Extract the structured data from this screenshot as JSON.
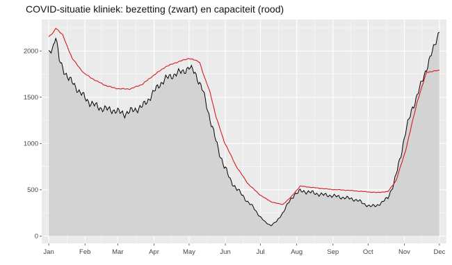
{
  "chart_data": {
    "type": "area",
    "title": "COVID-situatie kliniek: bezetting (zwart) en capaciteit (rood)",
    "xlabel": "",
    "ylabel": "",
    "x_ticks": [
      "Jan",
      "Feb",
      "Mar",
      "Apr",
      "May",
      "Jun",
      "Jul",
      "Aug",
      "Sep",
      "Oct",
      "Nov",
      "Dec"
    ],
    "y_ticks": [
      "0",
      "500",
      "1000",
      "1500",
      "2000"
    ],
    "ylim": [
      -80,
      2340
    ],
    "grid": true,
    "legend": "none",
    "colors": {
      "panel": "#ebebeb",
      "grid": "#ffffff",
      "area": "#d3d3d3",
      "bezetting": "#000000",
      "capaciteit": "#d7191c"
    },
    "series": [
      {
        "key": "bezetting",
        "points": [
          [
            0,
            1970
          ],
          [
            4,
            2060
          ],
          [
            6,
            2160
          ],
          [
            9,
            1900
          ],
          [
            13,
            1790
          ],
          [
            17,
            1700
          ],
          [
            21,
            1650
          ],
          [
            26,
            1560
          ],
          [
            30,
            1510
          ],
          [
            35,
            1440
          ],
          [
            40,
            1410
          ],
          [
            45,
            1380
          ],
          [
            50,
            1370
          ],
          [
            55,
            1360
          ],
          [
            60,
            1340
          ],
          [
            65,
            1320
          ],
          [
            70,
            1350
          ],
          [
            75,
            1370
          ],
          [
            80,
            1400
          ],
          [
            85,
            1470
          ],
          [
            90,
            1560
          ],
          [
            95,
            1640
          ],
          [
            100,
            1700
          ],
          [
            105,
            1730
          ],
          [
            110,
            1760
          ],
          [
            115,
            1780
          ],
          [
            120,
            1820
          ],
          [
            125,
            1770
          ],
          [
            128,
            1680
          ],
          [
            132,
            1560
          ],
          [
            136,
            1360
          ],
          [
            140,
            1170
          ],
          [
            145,
            930
          ],
          [
            150,
            760
          ],
          [
            155,
            610
          ],
          [
            160,
            520
          ],
          [
            165,
            450
          ],
          [
            170,
            370
          ],
          [
            175,
            310
          ],
          [
            180,
            220
          ],
          [
            185,
            150
          ],
          [
            190,
            115
          ],
          [
            195,
            160
          ],
          [
            200,
            250
          ],
          [
            205,
            360
          ],
          [
            210,
            450
          ],
          [
            215,
            485
          ],
          [
            220,
            480
          ],
          [
            225,
            470
          ],
          [
            230,
            455
          ],
          [
            235,
            445
          ],
          [
            240,
            440
          ],
          [
            245,
            430
          ],
          [
            250,
            420
          ],
          [
            255,
            410
          ],
          [
            260,
            400
          ],
          [
            265,
            380
          ],
          [
            270,
            345
          ],
          [
            275,
            320
          ],
          [
            280,
            330
          ],
          [
            285,
            360
          ],
          [
            290,
            420
          ],
          [
            295,
            560
          ],
          [
            300,
            820
          ],
          [
            305,
            1120
          ],
          [
            310,
            1350
          ],
          [
            315,
            1520
          ],
          [
            320,
            1700
          ],
          [
            325,
            1890
          ],
          [
            330,
            2060
          ],
          [
            334,
            2230
          ]
        ]
      },
      {
        "key": "capaciteit",
        "points": [
          [
            0,
            2150
          ],
          [
            4,
            2200
          ],
          [
            6,
            2250
          ],
          [
            12,
            2170
          ],
          [
            20,
            1920
          ],
          [
            30,
            1760
          ],
          [
            40,
            1680
          ],
          [
            50,
            1620
          ],
          [
            60,
            1590
          ],
          [
            70,
            1590
          ],
          [
            80,
            1640
          ],
          [
            90,
            1740
          ],
          [
            100,
            1830
          ],
          [
            110,
            1880
          ],
          [
            120,
            1920
          ],
          [
            125,
            1900
          ],
          [
            129,
            1880
          ],
          [
            133,
            1720
          ],
          [
            138,
            1550
          ],
          [
            143,
            1290
          ],
          [
            150,
            1020
          ],
          [
            160,
            760
          ],
          [
            170,
            570
          ],
          [
            180,
            450
          ],
          [
            190,
            370
          ],
          [
            200,
            340
          ],
          [
            207,
            420
          ],
          [
            215,
            540
          ],
          [
            225,
            525
          ],
          [
            240,
            505
          ],
          [
            255,
            495
          ],
          [
            270,
            480
          ],
          [
            280,
            470
          ],
          [
            290,
            480
          ],
          [
            297,
            600
          ],
          [
            305,
            920
          ],
          [
            315,
            1450
          ],
          [
            323,
            1770
          ],
          [
            334,
            1790
          ]
        ]
      }
    ]
  }
}
